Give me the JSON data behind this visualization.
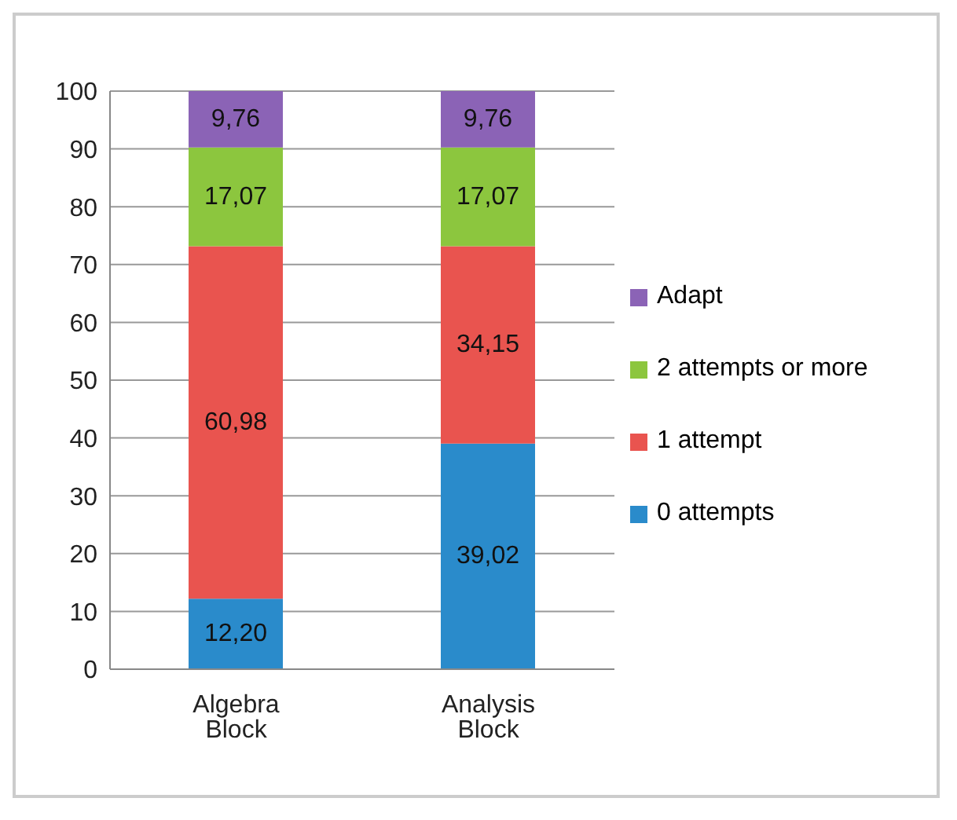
{
  "chart_data": {
    "type": "bar",
    "stacked": true,
    "categories": [
      "Algebra Block",
      "Analysis Block"
    ],
    "series": [
      {
        "name": "0 attempts",
        "color": "#2a8bcb",
        "values": [
          12.2,
          39.02
        ],
        "value_labels": [
          "12,20",
          "39,02"
        ]
      },
      {
        "name": "1 attempt",
        "color": "#e9544f",
        "values": [
          60.98,
          34.15
        ],
        "value_labels": [
          "60,98",
          "34,15"
        ]
      },
      {
        "name": "2 attempts or more",
        "color": "#8cc63e",
        "values": [
          17.07,
          17.07
        ],
        "value_labels": [
          "17,07",
          "17,07"
        ]
      },
      {
        "name": "Adapt",
        "color": "#8b63b6",
        "values": [
          9.76,
          9.76
        ],
        "value_labels": [
          "9,76",
          "9,76"
        ]
      }
    ],
    "ylim": [
      0,
      100
    ],
    "yticks": [
      0,
      10,
      20,
      30,
      40,
      50,
      60,
      70,
      80,
      90,
      100
    ],
    "grid": "y",
    "legend": "right"
  }
}
